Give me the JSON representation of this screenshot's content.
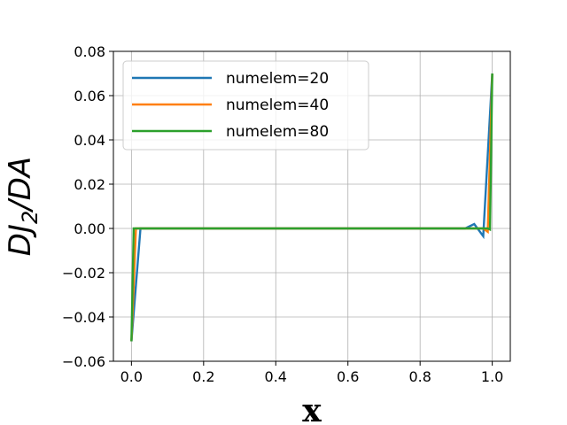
{
  "chart_data": {
    "type": "line",
    "xlabel": "x",
    "ylabel_main": "DJ",
    "ylabel_sub": "2",
    "ylabel_rest": "/DA",
    "xlim": [
      -0.05,
      1.05
    ],
    "ylim": [
      -0.06,
      0.08
    ],
    "xticks": [
      0.0,
      0.2,
      0.4,
      0.6,
      0.8,
      1.0
    ],
    "xtick_labels": [
      "0.0",
      "0.2",
      "0.4",
      "0.6",
      "0.8",
      "1.0"
    ],
    "yticks": [
      -0.06,
      -0.04,
      -0.02,
      0.0,
      0.02,
      0.04,
      0.06,
      0.08
    ],
    "ytick_labels": [
      "−0.06",
      "−0.04",
      "−0.02",
      "0.00",
      "0.02",
      "0.04",
      "0.06",
      "0.08"
    ],
    "grid": true,
    "legend_position": "top-left",
    "series": [
      {
        "name": "numelem=20",
        "color": "#1f77b4",
        "x": [
          0.0,
          0.025,
          0.05,
          0.9,
          0.925,
          0.95,
          0.975,
          1.0
        ],
        "y": [
          -0.051,
          0.0,
          0.0,
          0.0,
          0.0,
          0.002,
          -0.0035,
          0.07
        ]
      },
      {
        "name": "numelem=40",
        "color": "#ff7f0e",
        "x": [
          0.0,
          0.0125,
          0.025,
          0.95,
          0.9625,
          0.975,
          0.9875,
          1.0
        ],
        "y": [
          -0.051,
          0.0,
          0.0,
          0.0,
          0.0,
          0.0,
          -0.0015,
          0.07
        ]
      },
      {
        "name": "numelem=80",
        "color": "#2ca02c",
        "x": [
          0.0,
          0.00625,
          0.0125,
          0.975,
          0.98125,
          0.9875,
          0.99375,
          1.0
        ],
        "y": [
          -0.051,
          0.0,
          0.0,
          0.0,
          0.0,
          0.0,
          -0.0005,
          0.07
        ]
      }
    ]
  }
}
